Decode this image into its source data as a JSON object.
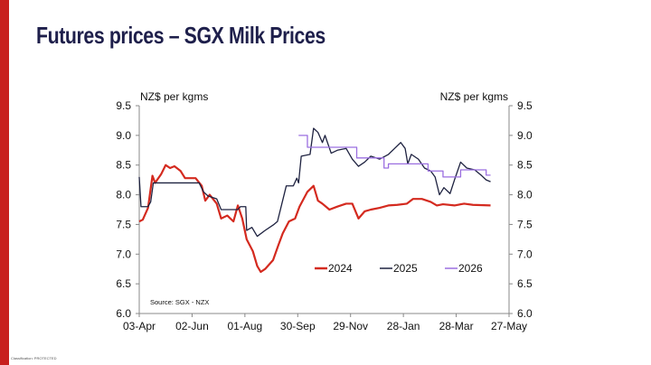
{
  "slide": {
    "title": "Futures prices – SGX Milk Prices",
    "footer": "Classification: PROTECTED"
  },
  "chart_data": {
    "type": "line",
    "title": "Futures prices – SGX Milk Prices",
    "ylabel_left": "NZ$ per kgms",
    "ylabel_right": "NZ$ per kgms",
    "source": "Source: SGX - NZX",
    "ylim": [
      6.0,
      9.5
    ],
    "yticks": [
      "6.0",
      "6.5",
      "7.0",
      "7.5",
      "8.0",
      "8.5",
      "9.0",
      "9.5"
    ],
    "xlim_days": [
      0,
      420
    ],
    "xticks": [
      "03-Apr",
      "02-Jun",
      "01-Aug",
      "30-Sep",
      "29-Nov",
      "28-Jan",
      "28-Mar",
      "27-May"
    ],
    "x_unit": "days since 03-Apr",
    "legend_position": "bottom-right",
    "series": [
      {
        "name": "2024",
        "color": "#d42a1f",
        "step": false,
        "points": [
          [
            0,
            7.55
          ],
          [
            4,
            7.58
          ],
          [
            10,
            7.78
          ],
          [
            15,
            8.32
          ],
          [
            18,
            8.2
          ],
          [
            25,
            8.35
          ],
          [
            30,
            8.5
          ],
          [
            35,
            8.45
          ],
          [
            40,
            8.48
          ],
          [
            47,
            8.4
          ],
          [
            52,
            8.28
          ],
          [
            64,
            8.28
          ],
          [
            71,
            8.15
          ],
          [
            75,
            7.9
          ],
          [
            80,
            8.0
          ],
          [
            88,
            7.85
          ],
          [
            93,
            7.6
          ],
          [
            100,
            7.65
          ],
          [
            107,
            7.55
          ],
          [
            112,
            7.82
          ],
          [
            117,
            7.6
          ],
          [
            122,
            7.25
          ],
          [
            129,
            7.05
          ],
          [
            134,
            6.8
          ],
          [
            138,
            6.7
          ],
          [
            143,
            6.75
          ],
          [
            152,
            6.9
          ],
          [
            158,
            7.15
          ],
          [
            163,
            7.35
          ],
          [
            170,
            7.55
          ],
          [
            177,
            7.6
          ],
          [
            182,
            7.8
          ],
          [
            191,
            8.05
          ],
          [
            198,
            8.15
          ],
          [
            203,
            7.9
          ],
          [
            208,
            7.85
          ],
          [
            216,
            7.75
          ],
          [
            225,
            7.8
          ],
          [
            235,
            7.85
          ],
          [
            242,
            7.85
          ],
          [
            249,
            7.6
          ],
          [
            256,
            7.72
          ],
          [
            263,
            7.75
          ],
          [
            273,
            7.78
          ],
          [
            283,
            7.82
          ],
          [
            293,
            7.83
          ],
          [
            304,
            7.85
          ],
          [
            311,
            7.93
          ],
          [
            321,
            7.93
          ],
          [
            331,
            7.88
          ],
          [
            338,
            7.82
          ],
          [
            345,
            7.84
          ],
          [
            358,
            7.82
          ],
          [
            369,
            7.85
          ],
          [
            379,
            7.83
          ],
          [
            399,
            7.82
          ]
        ]
      },
      {
        "name": "2025",
        "color": "#1e2240",
        "step": false,
        "points": [
          [
            0,
            8.3
          ],
          [
            2,
            7.8
          ],
          [
            10,
            7.8
          ],
          [
            13,
            7.88
          ],
          [
            16,
            8.2
          ],
          [
            68,
            8.2
          ],
          [
            73,
            8.05
          ],
          [
            78,
            7.98
          ],
          [
            88,
            7.93
          ],
          [
            93,
            7.75
          ],
          [
            112,
            7.75
          ],
          [
            115,
            7.8
          ],
          [
            121,
            7.8
          ],
          [
            122,
            7.4
          ],
          [
            128,
            7.45
          ],
          [
            134,
            7.3
          ],
          [
            143,
            7.4
          ],
          [
            153,
            7.5
          ],
          [
            157,
            7.55
          ],
          [
            162,
            7.85
          ],
          [
            167,
            8.15
          ],
          [
            175,
            8.15
          ],
          [
            179,
            8.28
          ],
          [
            181,
            8.2
          ],
          [
            184,
            8.65
          ],
          [
            194,
            8.68
          ],
          [
            198,
            9.12
          ],
          [
            203,
            9.05
          ],
          [
            208,
            8.88
          ],
          [
            211,
            9.0
          ],
          [
            218,
            8.7
          ],
          [
            225,
            8.75
          ],
          [
            235,
            8.78
          ],
          [
            242,
            8.6
          ],
          [
            249,
            8.48
          ],
          [
            256,
            8.55
          ],
          [
            263,
            8.65
          ],
          [
            273,
            8.6
          ],
          [
            283,
            8.68
          ],
          [
            290,
            8.78
          ],
          [
            297,
            8.88
          ],
          [
            302,
            8.78
          ],
          [
            305,
            8.52
          ],
          [
            309,
            8.68
          ],
          [
            317,
            8.6
          ],
          [
            324,
            8.45
          ],
          [
            331,
            8.4
          ],
          [
            336,
            8.3
          ],
          [
            341,
            8.0
          ],
          [
            346,
            8.12
          ],
          [
            353,
            8.02
          ],
          [
            358,
            8.25
          ],
          [
            365,
            8.55
          ],
          [
            372,
            8.45
          ],
          [
            381,
            8.42
          ],
          [
            389,
            8.32
          ],
          [
            394,
            8.25
          ],
          [
            399,
            8.22
          ]
        ]
      },
      {
        "name": "2026",
        "color": "#9b6fe0",
        "step": true,
        "points": [
          [
            181,
            9.0
          ],
          [
            191,
            8.8
          ],
          [
            247,
            8.62
          ],
          [
            278,
            8.45
          ],
          [
            283,
            8.52
          ],
          [
            328,
            8.4
          ],
          [
            345,
            8.3
          ],
          [
            365,
            8.42
          ],
          [
            394,
            8.33
          ],
          [
            399,
            8.33
          ]
        ]
      }
    ]
  }
}
